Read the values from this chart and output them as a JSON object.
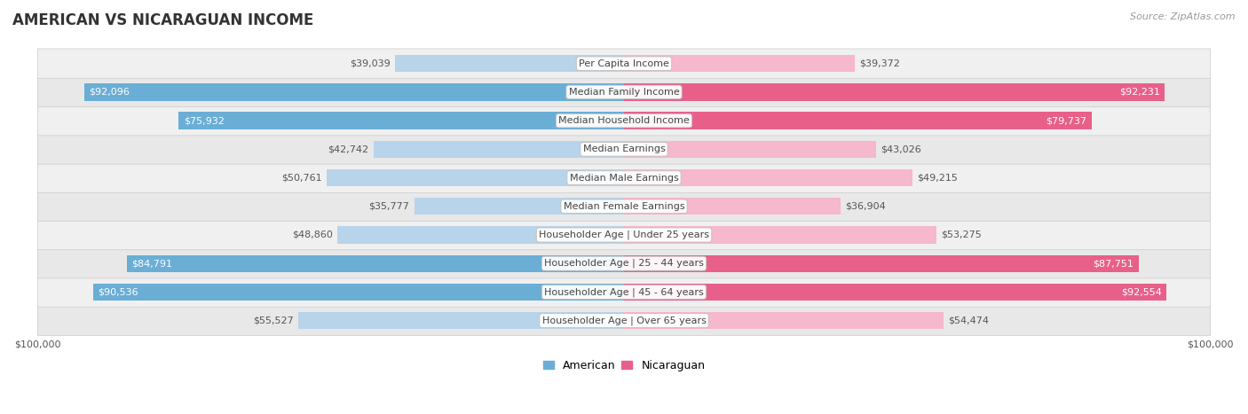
{
  "title": "AMERICAN VS NICARAGUAN INCOME",
  "source": "Source: ZipAtlas.com",
  "categories": [
    "Per Capita Income",
    "Median Family Income",
    "Median Household Income",
    "Median Earnings",
    "Median Male Earnings",
    "Median Female Earnings",
    "Householder Age | Under 25 years",
    "Householder Age | 25 - 44 years",
    "Householder Age | 45 - 64 years",
    "Householder Age | Over 65 years"
  ],
  "american_values": [
    39039,
    92096,
    75932,
    42742,
    50761,
    35777,
    48860,
    84791,
    90536,
    55527
  ],
  "nicaraguan_values": [
    39372,
    92231,
    79737,
    43026,
    49215,
    36904,
    53275,
    87751,
    92554,
    54474
  ],
  "american_labels": [
    "$39,039",
    "$92,096",
    "$75,932",
    "$42,742",
    "$50,761",
    "$35,777",
    "$48,860",
    "$84,791",
    "$90,536",
    "$55,527"
  ],
  "nicaraguan_labels": [
    "$39,372",
    "$92,231",
    "$79,737",
    "$43,026",
    "$49,215",
    "$36,904",
    "$53,275",
    "$87,751",
    "$92,554",
    "$54,474"
  ],
  "max_value": 100000,
  "american_color_light": "#b8d4ea",
  "american_color_dark": "#6aaed6",
  "nicaraguan_color_light": "#f5b8cc",
  "nicaraguan_color_dark": "#e8608a",
  "row_bg_light": "#f0f0f0",
  "row_bg_dark": "#e0e0e0",
  "background_color": "#ffffff",
  "title_fontsize": 12,
  "label_fontsize": 8,
  "value_fontsize": 8,
  "legend_fontsize": 9,
  "source_fontsize": 8,
  "threshold": 0.6
}
